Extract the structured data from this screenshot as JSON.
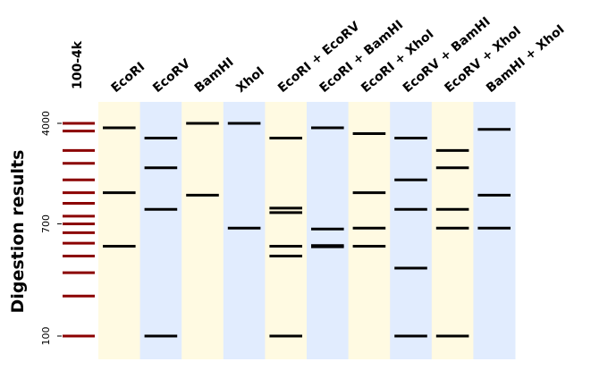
{
  "ladder_label": "100-4k",
  "ylabel": "Digestion results",
  "ticks": [
    {
      "label": "4000",
      "value": 4000
    },
    {
      "label": "700",
      "value": 700
    },
    {
      "label": "100",
      "value": 100
    }
  ],
  "ladder": {
    "color": "#8b0000",
    "bands": [
      4000,
      3500,
      2500,
      2000,
      1500,
      1200,
      1000,
      800,
      700,
      600,
      500,
      400,
      300,
      200,
      100
    ]
  },
  "lane_colors": [
    "#fffae2",
    "#e1ecfe"
  ],
  "band_color": "#000000",
  "lanes": [
    {
      "name": "EcoRI",
      "bands": [
        3700,
        1200,
        475
      ]
    },
    {
      "name": "EcoRV",
      "bands": [
        3100,
        1850,
        900,
        100
      ]
    },
    {
      "name": "BamHI",
      "bands": [
        4000,
        1150
      ]
    },
    {
      "name": "XhoI",
      "bands": [
        4000,
        650
      ]
    },
    {
      "name": "EcoRI + EcoRV",
      "bands": [
        3100,
        920,
        850,
        475,
        400,
        100
      ]
    },
    {
      "name": "EcoRI + BamHI",
      "bands": [
        3700,
        640,
        480,
        470
      ]
    },
    {
      "name": "EcoRI + XhoI",
      "bands": [
        3350,
        1200,
        650,
        475
      ]
    },
    {
      "name": "EcoRV + BamHI",
      "bands": [
        3100,
        1500,
        900,
        325,
        100
      ]
    },
    {
      "name": "EcoRV + XhoI",
      "bands": [
        2500,
        1850,
        900,
        650,
        100
      ]
    },
    {
      "name": "BamHI + XhoI",
      "bands": [
        3600,
        1150,
        650
      ]
    }
  ]
}
